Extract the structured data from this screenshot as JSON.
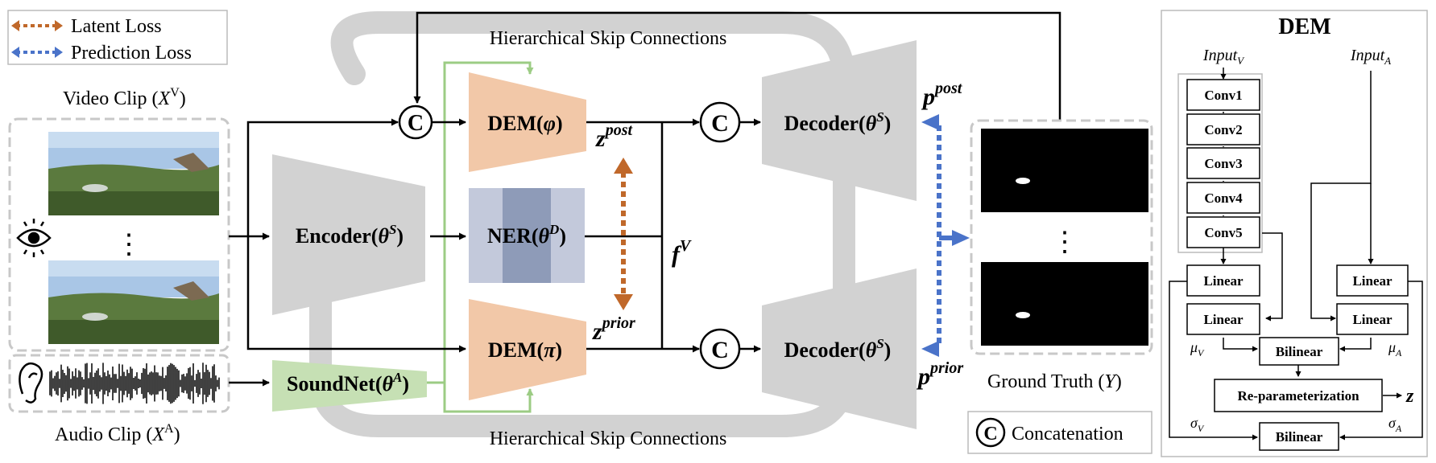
{
  "legend": {
    "latent_loss": "Latent Loss",
    "prediction_loss": "Prediction Loss",
    "latent_color": "#c0682a",
    "prediction_color": "#4a73c9"
  },
  "inputs": {
    "video_label": "Video Clip (",
    "video_sym": "X",
    "video_sup": "V",
    "video_close": ")",
    "vdots": "⋮",
    "audio_label": "Audio Clip (",
    "audio_sym": "X",
    "audio_sup": "A",
    "audio_close": ")"
  },
  "blocks": {
    "skip_top": "Hierarchical Skip Connections",
    "skip_bottom": "Hierarchical Skip Connections",
    "encoder": "Encoder(",
    "encoder_sym": "θ",
    "encoder_sup": "S",
    "ner": "NER(",
    "ner_sym": "θ",
    "ner_sup": "D",
    "dem_post": "DEM(",
    "dem_post_sym": "φ",
    "dem_prior": "DEM(",
    "dem_prior_sym": "π",
    "soundnet": "SoundNet(",
    "soundnet_sym": "θ",
    "soundnet_sup": "A",
    "decoder_top": "Decoder(",
    "decoder_top_sym": "θ",
    "decoder_top_sup": "S",
    "decoder_bottom": "Decoder(",
    "decoder_bottom_sym": "θ",
    "decoder_bottom_sup": "S",
    "close": ")",
    "concat": "C"
  },
  "symbols": {
    "z": "z",
    "post": "post",
    "prior": "prior",
    "f": "f",
    "f_sup": "V",
    "p": "p"
  },
  "ground_truth": {
    "label": "Ground Truth (",
    "sym": "Y",
    "close": ")",
    "vdots": "⋮"
  },
  "concat_legend": {
    "symbol": "C",
    "label": "Concatenation"
  },
  "dem_panel": {
    "title": "DEM",
    "input_v": "Input",
    "input_v_sub": "V",
    "input_a": "Input",
    "input_a_sub": "A",
    "conv": [
      "Conv1",
      "Conv2",
      "Conv3",
      "Conv4",
      "Conv5"
    ],
    "linear_v1": "Linear",
    "linear_v2": "Linear",
    "linear_a1": "Linear",
    "linear_a2": "Linear",
    "bilinear_mu": "Bilinear",
    "bilinear_sigma": "Bilinear",
    "reparam": "Re-parameterization",
    "z": "z",
    "mu": "μ",
    "sigma": "σ",
    "sub_v": "V",
    "sub_a": "A"
  }
}
